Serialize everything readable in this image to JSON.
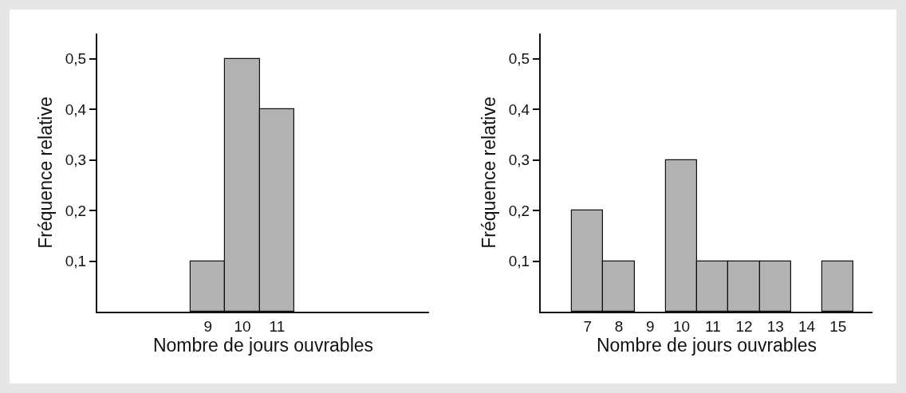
{
  "chart_data": [
    {
      "type": "histogram",
      "xlabel": "Nombre de jours ouvrables",
      "ylabel": "Fréquence relative",
      "bins": [
        8.5,
        9.5,
        10.5,
        11.5
      ],
      "values": [
        0.1,
        0.5,
        0.4
      ],
      "color": "#b3b3b3",
      "xlim": [
        5.8,
        15.4
      ],
      "xticks": [
        9,
        10,
        11
      ],
      "ylim": [
        0,
        0.55
      ],
      "yticks": [
        {
          "value": 0.1,
          "label": "0,1"
        },
        {
          "value": 0.2,
          "label": "0,2"
        },
        {
          "value": 0.3,
          "label": "0,3"
        },
        {
          "value": 0.4,
          "label": "0,4"
        },
        {
          "value": 0.5,
          "label": "0,5"
        }
      ],
      "grid": false
    },
    {
      "type": "histogram",
      "xlabel": "Nombre de jours ouvrables",
      "ylabel": "Fréquence relative",
      "bins": [
        6.5,
        7.5,
        8.5,
        9.5,
        10.5,
        11.5,
        12.5,
        13.5,
        14.5,
        15.5
      ],
      "values": [
        0.2,
        0.1,
        0,
        0.3,
        0.1,
        0.1,
        0.1,
        0,
        0.1
      ],
      "color": "#b3b3b3",
      "xlim": [
        5.5,
        16.1
      ],
      "xticks": [
        7,
        8,
        9,
        10,
        11,
        12,
        13,
        14,
        15
      ],
      "ylim": [
        0,
        0.55
      ],
      "yticks": [
        {
          "value": 0.1,
          "label": "0,1"
        },
        {
          "value": 0.2,
          "label": "0,2"
        },
        {
          "value": 0.3,
          "label": "0,3"
        },
        {
          "value": 0.4,
          "label": "0,4"
        },
        {
          "value": 0.5,
          "label": "0,5"
        }
      ],
      "grid": false
    }
  ]
}
